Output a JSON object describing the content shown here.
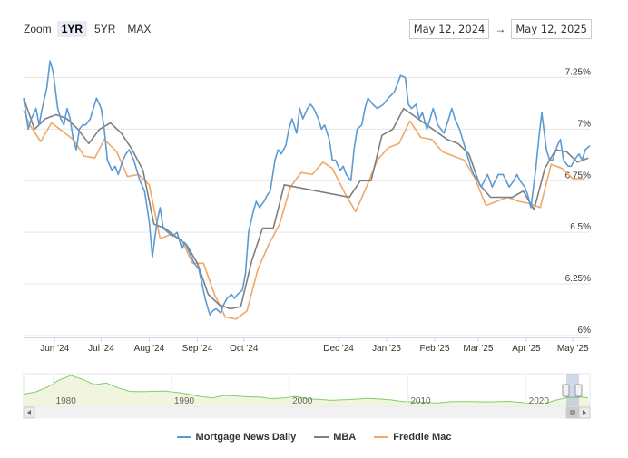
{
  "toolbar": {
    "zoom_label": "Zoom",
    "buttons": [
      {
        "label": "1YR",
        "active": true
      },
      {
        "label": "5YR",
        "active": false
      },
      {
        "label": "MAX",
        "active": false
      }
    ],
    "date_from": "May 12, 2024",
    "date_arrow": "→",
    "date_to": "May 12, 2025"
  },
  "navigator": {
    "year_labels": [
      "1980",
      "1990",
      "2000",
      "2010",
      "2020"
    ]
  },
  "chart_data": {
    "type": "line",
    "title": "",
    "xlabel": "",
    "ylabel": "",
    "x_range": [
      "2024-05-12",
      "2025-05-12"
    ],
    "ylim": [
      6.0,
      7.375
    ],
    "y_ticks": [
      {
        "value": 6.0,
        "label": "6%"
      },
      {
        "value": 6.25,
        "label": "6.25%"
      },
      {
        "value": 6.5,
        "label": "6.5%"
      },
      {
        "value": 6.75,
        "label": "6.75%"
      },
      {
        "value": 7.0,
        "label": "7%"
      },
      {
        "value": 7.25,
        "label": "7.25%"
      }
    ],
    "x_ticks": [
      {
        "date": "2024-06-01",
        "label": "Jun '24"
      },
      {
        "date": "2024-07-01",
        "label": "Jul '24"
      },
      {
        "date": "2024-08-01",
        "label": "Aug '24"
      },
      {
        "date": "2024-09-01",
        "label": "Sep '24"
      },
      {
        "date": "2024-10-01",
        "label": "Oct '24"
      },
      {
        "date": "2024-12-01",
        "label": "Dec '24"
      },
      {
        "date": "2025-01-01",
        "label": "Jan '25"
      },
      {
        "date": "2025-02-01",
        "label": "Feb '25"
      },
      {
        "date": "2025-03-01",
        "label": "Mar '25"
      },
      {
        "date": "2025-04-01",
        "label": "Apr '25"
      },
      {
        "date": "2025-05-01",
        "label": "May '25"
      }
    ],
    "grid": true,
    "legend_position": "bottom-center",
    "series": [
      {
        "name": "Mortgage News Daily",
        "color": "#5b9bd5",
        "points": [
          [
            "2024-05-12",
            7.15
          ],
          [
            "2024-05-15",
            7.0
          ],
          [
            "2024-05-17",
            7.05
          ],
          [
            "2024-05-20",
            7.1
          ],
          [
            "2024-05-22",
            7.02
          ],
          [
            "2024-05-24",
            7.1
          ],
          [
            "2024-05-27",
            7.2
          ],
          [
            "2024-05-29",
            7.33
          ],
          [
            "2024-05-31",
            7.28
          ],
          [
            "2024-06-03",
            7.1
          ],
          [
            "2024-06-05",
            7.05
          ],
          [
            "2024-06-07",
            7.02
          ],
          [
            "2024-06-09",
            7.1
          ],
          [
            "2024-06-11",
            7.05
          ],
          [
            "2024-06-13",
            6.95
          ],
          [
            "2024-06-15",
            6.9
          ],
          [
            "2024-06-17",
            7.0
          ],
          [
            "2024-06-19",
            7.02
          ],
          [
            "2024-06-21",
            7.02
          ],
          [
            "2024-06-24",
            7.05
          ],
          [
            "2024-06-26",
            7.1
          ],
          [
            "2024-06-28",
            7.15
          ],
          [
            "2024-07-01",
            7.1
          ],
          [
            "2024-07-03",
            7.0
          ],
          [
            "2024-07-05",
            6.85
          ],
          [
            "2024-07-08",
            6.8
          ],
          [
            "2024-07-10",
            6.82
          ],
          [
            "2024-07-12",
            6.78
          ],
          [
            "2024-07-15",
            6.85
          ],
          [
            "2024-07-17",
            6.88
          ],
          [
            "2024-07-19",
            6.9
          ],
          [
            "2024-07-22",
            6.85
          ],
          [
            "2024-07-24",
            6.8
          ],
          [
            "2024-07-26",
            6.75
          ],
          [
            "2024-07-29",
            6.7
          ],
          [
            "2024-08-01",
            6.55
          ],
          [
            "2024-08-03",
            6.38
          ],
          [
            "2024-08-06",
            6.55
          ],
          [
            "2024-08-08",
            6.62
          ],
          [
            "2024-08-10",
            6.52
          ],
          [
            "2024-08-13",
            6.5
          ],
          [
            "2024-08-16",
            6.48
          ],
          [
            "2024-08-19",
            6.5
          ],
          [
            "2024-08-22",
            6.42
          ],
          [
            "2024-08-24",
            6.45
          ],
          [
            "2024-08-27",
            6.4
          ],
          [
            "2024-08-30",
            6.35
          ],
          [
            "2024-09-02",
            6.32
          ],
          [
            "2024-09-04",
            6.25
          ],
          [
            "2024-09-06",
            6.18
          ],
          [
            "2024-09-09",
            6.1
          ],
          [
            "2024-09-11",
            6.12
          ],
          [
            "2024-09-13",
            6.13
          ],
          [
            "2024-09-16",
            6.11
          ],
          [
            "2024-09-18",
            6.15
          ],
          [
            "2024-09-20",
            6.18
          ],
          [
            "2024-09-23",
            6.2
          ],
          [
            "2024-09-25",
            6.18
          ],
          [
            "2024-09-27",
            6.2
          ],
          [
            "2024-09-30",
            6.22
          ],
          [
            "2024-10-02",
            6.3
          ],
          [
            "2024-10-04",
            6.5
          ],
          [
            "2024-10-07",
            6.6
          ],
          [
            "2024-10-09",
            6.65
          ],
          [
            "2024-10-11",
            6.62
          ],
          [
            "2024-10-14",
            6.65
          ],
          [
            "2024-10-16",
            6.68
          ],
          [
            "2024-10-18",
            6.7
          ],
          [
            "2024-10-21",
            6.85
          ],
          [
            "2024-10-23",
            6.9
          ],
          [
            "2024-10-25",
            6.88
          ],
          [
            "2024-10-28",
            6.92
          ],
          [
            "2024-10-30",
            7.0
          ],
          [
            "2024-11-01",
            7.05
          ],
          [
            "2024-11-04",
            6.98
          ],
          [
            "2024-11-06",
            7.1
          ],
          [
            "2024-11-08",
            7.05
          ],
          [
            "2024-11-11",
            7.1
          ],
          [
            "2024-11-13",
            7.12
          ],
          [
            "2024-11-15",
            7.1
          ],
          [
            "2024-11-18",
            7.05
          ],
          [
            "2024-11-20",
            7.0
          ],
          [
            "2024-11-22",
            7.02
          ],
          [
            "2024-11-25",
            6.95
          ],
          [
            "2024-11-27",
            6.85
          ],
          [
            "2024-11-29",
            6.85
          ],
          [
            "2024-12-02",
            6.8
          ],
          [
            "2024-12-04",
            6.82
          ],
          [
            "2024-12-06",
            6.78
          ],
          [
            "2024-12-09",
            6.75
          ],
          [
            "2024-12-11",
            6.9
          ],
          [
            "2024-12-13",
            7.0
          ],
          [
            "2024-12-16",
            7.02
          ],
          [
            "2024-12-18",
            7.1
          ],
          [
            "2024-12-20",
            7.15
          ],
          [
            "2024-12-23",
            7.12
          ],
          [
            "2024-12-26",
            7.1
          ],
          [
            "2024-12-30",
            7.12
          ],
          [
            "2025-01-02",
            7.15
          ],
          [
            "2025-01-06",
            7.18
          ],
          [
            "2025-01-08",
            7.22
          ],
          [
            "2025-01-10",
            7.26
          ],
          [
            "2025-01-13",
            7.25
          ],
          [
            "2025-01-15",
            7.12
          ],
          [
            "2025-01-17",
            7.1
          ],
          [
            "2025-01-20",
            7.12
          ],
          [
            "2025-01-22",
            7.05
          ],
          [
            "2025-01-24",
            7.08
          ],
          [
            "2025-01-27",
            7.0
          ],
          [
            "2025-01-29",
            7.05
          ],
          [
            "2025-01-31",
            7.1
          ],
          [
            "2025-02-03",
            7.02
          ],
          [
            "2025-02-05",
            7.0
          ],
          [
            "2025-02-07",
            6.98
          ],
          [
            "2025-02-10",
            7.05
          ],
          [
            "2025-02-12",
            7.1
          ],
          [
            "2025-02-14",
            7.05
          ],
          [
            "2025-02-17",
            7.0
          ],
          [
            "2025-02-19",
            6.95
          ],
          [
            "2025-02-21",
            6.9
          ],
          [
            "2025-02-24",
            6.82
          ],
          [
            "2025-02-26",
            6.78
          ],
          [
            "2025-02-28",
            6.76
          ],
          [
            "2025-03-03",
            6.72
          ],
          [
            "2025-03-05",
            6.75
          ],
          [
            "2025-03-07",
            6.78
          ],
          [
            "2025-03-10",
            6.72
          ],
          [
            "2025-03-12",
            6.75
          ],
          [
            "2025-03-14",
            6.78
          ],
          [
            "2025-03-17",
            6.78
          ],
          [
            "2025-03-19",
            6.75
          ],
          [
            "2025-03-21",
            6.72
          ],
          [
            "2025-03-24",
            6.75
          ],
          [
            "2025-03-26",
            6.78
          ],
          [
            "2025-03-28",
            6.75
          ],
          [
            "2025-03-31",
            6.72
          ],
          [
            "2025-04-02",
            6.68
          ],
          [
            "2025-04-04",
            6.62
          ],
          [
            "2025-04-07",
            6.8
          ],
          [
            "2025-04-09",
            6.95
          ],
          [
            "2025-04-11",
            7.08
          ],
          [
            "2025-04-14",
            6.9
          ],
          [
            "2025-04-16",
            6.85
          ],
          [
            "2025-04-18",
            6.85
          ],
          [
            "2025-04-21",
            6.92
          ],
          [
            "2025-04-23",
            6.95
          ],
          [
            "2025-04-25",
            6.85
          ],
          [
            "2025-04-28",
            6.82
          ],
          [
            "2025-04-30",
            6.82
          ],
          [
            "2025-05-02",
            6.85
          ],
          [
            "2025-05-05",
            6.88
          ],
          [
            "2025-05-07",
            6.85
          ],
          [
            "2025-05-09",
            6.9
          ],
          [
            "2025-05-12",
            6.92
          ]
        ]
      },
      {
        "name": "MBA",
        "color": "#7f7f7f",
        "points": [
          [
            "2024-05-12",
            7.15
          ],
          [
            "2024-05-19",
            7.0
          ],
          [
            "2024-05-26",
            7.05
          ],
          [
            "2024-06-02",
            7.07
          ],
          [
            "2024-06-09",
            7.05
          ],
          [
            "2024-06-16",
            7.0
          ],
          [
            "2024-06-23",
            6.93
          ],
          [
            "2024-06-30",
            7.0
          ],
          [
            "2024-07-07",
            7.03
          ],
          [
            "2024-07-14",
            6.98
          ],
          [
            "2024-07-21",
            6.9
          ],
          [
            "2024-07-28",
            6.8
          ],
          [
            "2024-08-04",
            6.54
          ],
          [
            "2024-08-11",
            6.52
          ],
          [
            "2024-08-18",
            6.48
          ],
          [
            "2024-08-25",
            6.44
          ],
          [
            "2024-09-01",
            6.35
          ],
          [
            "2024-09-08",
            6.2
          ],
          [
            "2024-09-15",
            6.15
          ],
          [
            "2024-09-22",
            6.13
          ],
          [
            "2024-09-29",
            6.14
          ],
          [
            "2024-10-06",
            6.36
          ],
          [
            "2024-10-13",
            6.52
          ],
          [
            "2024-10-20",
            6.52
          ],
          [
            "2024-10-27",
            6.73
          ],
          [
            "2024-12-08",
            6.67
          ],
          [
            "2024-12-15",
            6.75
          ],
          [
            "2024-12-22",
            6.75
          ],
          [
            "2024-12-29",
            6.97
          ],
          [
            "2025-01-05",
            7.0
          ],
          [
            "2025-01-12",
            7.1
          ],
          [
            "2025-02-09",
            6.95
          ],
          [
            "2025-02-16",
            6.93
          ],
          [
            "2025-02-23",
            6.88
          ],
          [
            "2025-03-02",
            6.73
          ],
          [
            "2025-03-09",
            6.67
          ],
          [
            "2025-03-16",
            6.67
          ],
          [
            "2025-03-23",
            6.67
          ],
          [
            "2025-03-30",
            6.7
          ],
          [
            "2025-04-06",
            6.61
          ],
          [
            "2025-04-13",
            6.81
          ],
          [
            "2025-04-20",
            6.9
          ],
          [
            "2025-04-27",
            6.89
          ],
          [
            "2025-05-04",
            6.84
          ],
          [
            "2025-05-11",
            6.86
          ]
        ]
      },
      {
        "name": "Freddie Mac",
        "color": "#f0a868",
        "points": [
          [
            "2024-05-12",
            7.09
          ],
          [
            "2024-05-16",
            7.02
          ],
          [
            "2024-05-23",
            6.94
          ],
          [
            "2024-05-30",
            7.03
          ],
          [
            "2024-06-06",
            6.99
          ],
          [
            "2024-06-13",
            6.95
          ],
          [
            "2024-06-20",
            6.87
          ],
          [
            "2024-06-27",
            6.86
          ],
          [
            "2024-07-03",
            6.95
          ],
          [
            "2024-07-11",
            6.89
          ],
          [
            "2024-07-18",
            6.77
          ],
          [
            "2024-07-25",
            6.78
          ],
          [
            "2024-08-01",
            6.73
          ],
          [
            "2024-08-08",
            6.47
          ],
          [
            "2024-08-15",
            6.49
          ],
          [
            "2024-08-22",
            6.46
          ],
          [
            "2024-08-29",
            6.35
          ],
          [
            "2024-09-05",
            6.35
          ],
          [
            "2024-09-12",
            6.2
          ],
          [
            "2024-09-19",
            6.09
          ],
          [
            "2024-09-26",
            6.08
          ],
          [
            "2024-10-03",
            6.12
          ],
          [
            "2024-10-10",
            6.32
          ],
          [
            "2024-10-17",
            6.44
          ],
          [
            "2024-10-24",
            6.54
          ],
          [
            "2024-10-31",
            6.72
          ],
          [
            "2024-11-07",
            6.79
          ],
          [
            "2024-11-14",
            6.78
          ],
          [
            "2024-11-21",
            6.84
          ],
          [
            "2024-11-27",
            6.81
          ],
          [
            "2024-12-05",
            6.69
          ],
          [
            "2024-12-12",
            6.6
          ],
          [
            "2024-12-19",
            6.72
          ],
          [
            "2024-12-26",
            6.85
          ],
          [
            "2025-01-02",
            6.91
          ],
          [
            "2025-01-09",
            6.93
          ],
          [
            "2025-01-16",
            7.04
          ],
          [
            "2025-01-23",
            6.96
          ],
          [
            "2025-01-30",
            6.95
          ],
          [
            "2025-02-06",
            6.89
          ],
          [
            "2025-02-13",
            6.87
          ],
          [
            "2025-02-20",
            6.85
          ],
          [
            "2025-02-27",
            6.76
          ],
          [
            "2025-03-06",
            6.63
          ],
          [
            "2025-03-13",
            6.65
          ],
          [
            "2025-03-20",
            6.67
          ],
          [
            "2025-03-27",
            6.65
          ],
          [
            "2025-04-03",
            6.64
          ],
          [
            "2025-04-10",
            6.62
          ],
          [
            "2025-04-17",
            6.83
          ],
          [
            "2025-04-24",
            6.81
          ],
          [
            "2025-05-01",
            6.76
          ],
          [
            "2025-05-08",
            6.76
          ]
        ]
      }
    ]
  }
}
